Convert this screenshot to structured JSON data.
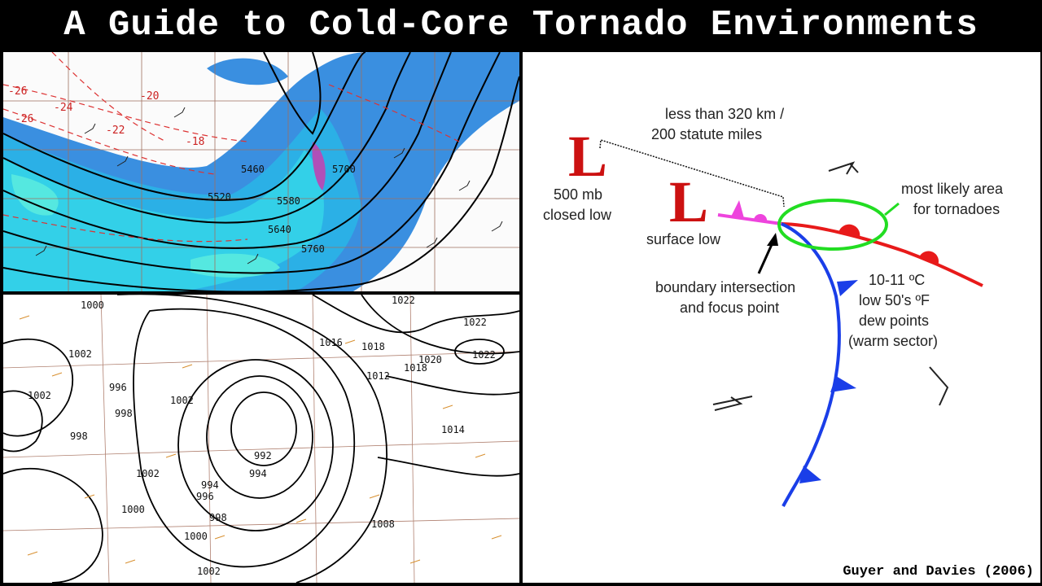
{
  "title": "A Guide to Cold-Core Tornado Environments",
  "credit": "Guyer and Davies (2006)",
  "upper_map": {
    "height_labels": [
      "5460",
      "5520",
      "5580",
      "5640",
      "5700",
      "5760"
    ],
    "temp_labels": [
      "-26",
      "-26",
      "-24",
      "-22",
      "-20",
      "-18"
    ]
  },
  "surface_map": {
    "isobar_labels": [
      "1000",
      "1002",
      "1002",
      "996",
      "998",
      "998",
      "1002",
      "1002",
      "1000",
      "994",
      "994",
      "996",
      "998",
      "992",
      "1000",
      "1002",
      "1016",
      "1018",
      "1020",
      "1018",
      "1022",
      "1022",
      "1022",
      "1012",
      "1014",
      "1008"
    ]
  },
  "diagram": {
    "distance_label_1": "less than 320 km /",
    "distance_label_2": "200 statute miles",
    "low_500_symbol": "L",
    "low_500_label_1": "500 mb",
    "low_500_label_2": "closed low",
    "surface_low_symbol": "L",
    "surface_low_label": "surface low",
    "tornado_label_1": "most likely area",
    "tornado_label_2": "for tornadoes",
    "boundary_label_1": "boundary intersection",
    "boundary_label_2": "and focus point",
    "warm_label_1": "10-11 ºC",
    "warm_label_2": "low 50's ºF",
    "warm_label_3": "dew points",
    "warm_label_4": "(warm sector)",
    "colors": {
      "low": "#cc1111",
      "cold_front": "#1a3ee8",
      "warm_front": "#e81a1a",
      "occluded": "#ee44dd",
      "highlight": "#22dd22"
    }
  }
}
